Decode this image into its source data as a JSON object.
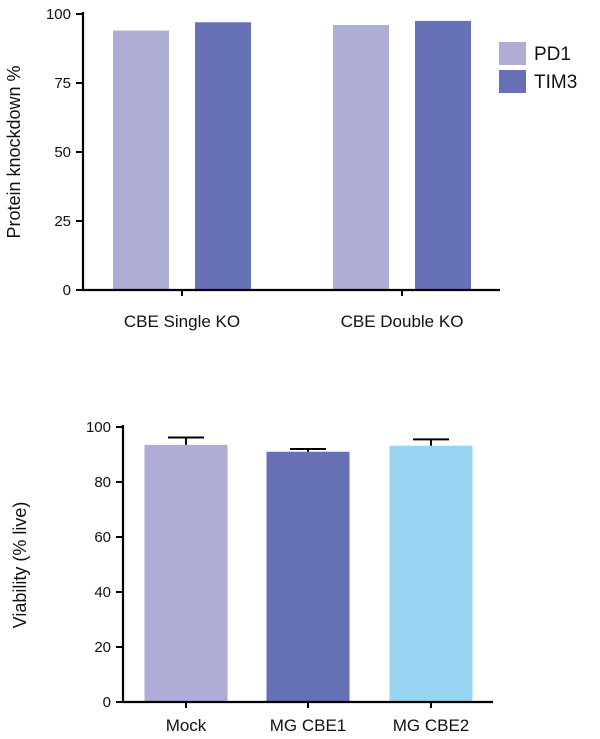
{
  "chart_data": [
    {
      "type": "bar",
      "title": "",
      "xlabel": "",
      "ylabel": "Protein knockdown %",
      "ylim": [
        0,
        100
      ],
      "yticks": [
        0,
        25,
        50,
        75,
        100
      ],
      "grid": false,
      "legend_position": "right",
      "categories": [
        "CBE Single KO",
        "CBE Double KO"
      ],
      "series": [
        {
          "name": "PD1",
          "color": "#adadd6",
          "values": [
            94,
            96
          ]
        },
        {
          "name": "TIM3",
          "color": "#6670b5",
          "values": [
            97,
            97.5
          ]
        }
      ]
    },
    {
      "type": "bar",
      "title": "",
      "xlabel": "",
      "ylabel": "Viability (% live)",
      "ylim": [
        0,
        100
      ],
      "yticks": [
        0,
        20,
        40,
        60,
        80,
        100
      ],
      "grid": false,
      "categories": [
        "Mock",
        "MG CBE1",
        "MG CBE2"
      ],
      "values": [
        93.5,
        91,
        93.2
      ],
      "errors": [
        2.7,
        1.0,
        2.3
      ],
      "colors": [
        "#adadd6",
        "#6670b5",
        "#99d4f2"
      ]
    }
  ]
}
